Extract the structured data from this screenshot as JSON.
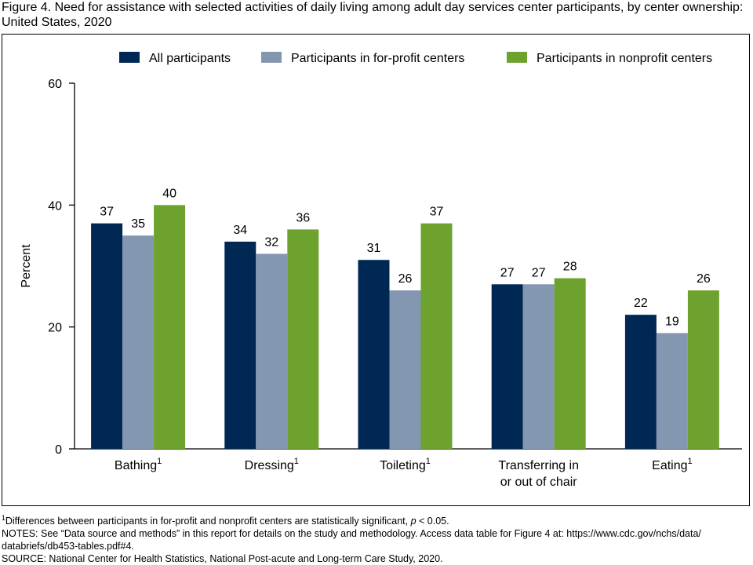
{
  "title": "Figure 4. Need for assistance with selected activities of daily living among adult day services center participants, by center ownership: United States, 2020",
  "colors": {
    "all": "#002855",
    "forprofit": "#8497b0",
    "nonprofit": "#6ea22e"
  },
  "chart_data": {
    "type": "bar",
    "ylabel": "Percent",
    "ylim": [
      0,
      60
    ],
    "yticks": [
      0,
      20,
      40,
      60
    ],
    "legend_position": "top",
    "categories": [
      {
        "label": "Bathing",
        "sup": "1"
      },
      {
        "label": "Dressing",
        "sup": "1"
      },
      {
        "label": "Toileting",
        "sup": "1"
      },
      {
        "label": "Transferring in",
        "label2": "or out of chair"
      },
      {
        "label": "Eating",
        "sup": "1"
      }
    ],
    "series": [
      {
        "key": "all",
        "name": "All participants",
        "values": [
          37,
          34,
          31,
          27,
          22
        ]
      },
      {
        "key": "forprofit",
        "name": "Participants in for-profit centers",
        "values": [
          35,
          32,
          26,
          27,
          19
        ]
      },
      {
        "key": "nonprofit",
        "name": "Participants in nonprofit centers",
        "values": [
          40,
          36,
          37,
          28,
          26
        ]
      }
    ]
  },
  "notes": {
    "footnote_sup": "1",
    "footnote_text": "Differences between participants in for-profit and nonprofit centers are statistically significant, ",
    "footnote_p": "p",
    "footnote_tail": " < 0.05.",
    "notes_line1": "NOTES: See “Data source and methods” in this report for details on the study and methodology. Access data table for Figure 4 at: https://www.cdc.gov/nchs/data/",
    "notes_line2": "databriefs/db453-tables.pdf#4.",
    "source": "SOURCE: National Center for Health Statistics, National Post-acute and Long-term Care Study, 2020."
  }
}
